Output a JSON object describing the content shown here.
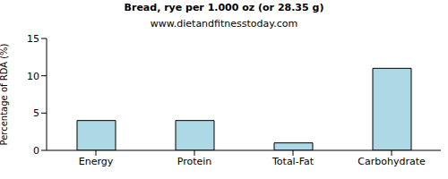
{
  "chart_data": {
    "type": "bar",
    "title": "Bread, rye per 1.000 oz (or 28.35 g)",
    "subtitle": "www.dietandfitnesstoday.com",
    "y_label": "Percentage of RDA (%)",
    "categories": [
      "Energy",
      "Protein",
      "Total-Fat",
      "Carbohydrate"
    ],
    "values": [
      4,
      4,
      1,
      11
    ],
    "color": "#add8e6",
    "ylim": [
      0,
      15
    ],
    "yticks": [
      0,
      5,
      10,
      15
    ],
    "grid": false
  }
}
